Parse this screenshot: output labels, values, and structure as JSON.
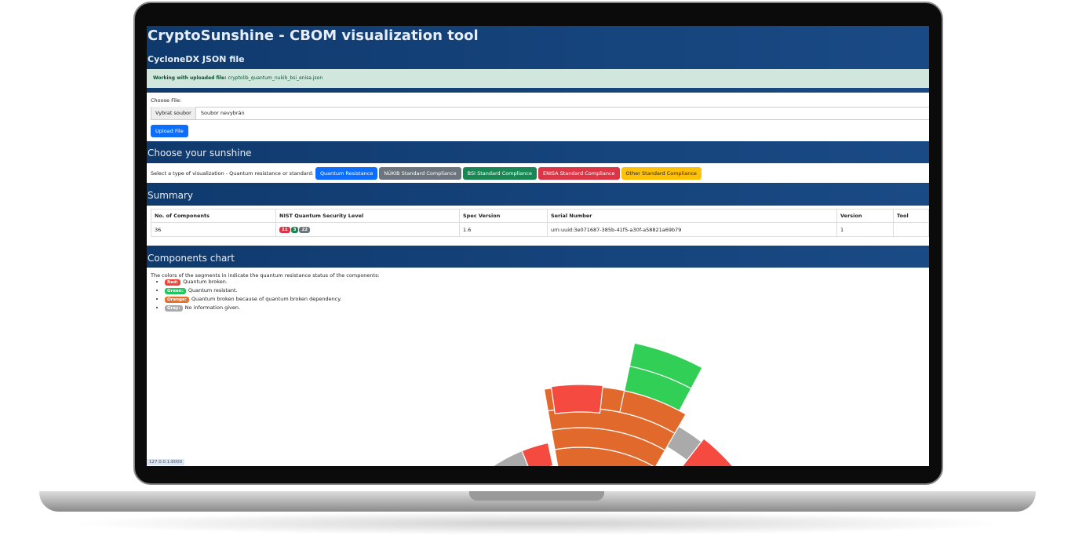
{
  "header": {
    "title": "CryptoSunshine - CBOM visualization tool"
  },
  "upload": {
    "heading": "CycloneDX JSON file",
    "alert_label": "Working with uploaded file:",
    "alert_file": "cryptolib_quantum_nukib_bsi_enisa.json",
    "choose_label": "Choose File:",
    "browse_button": "Vybrat soubor",
    "no_file": "Soubor nevybrán",
    "upload_button": "Upload File"
  },
  "visualization": {
    "heading": "Choose your sunshine",
    "prompt": "Select a type of visualization - Quantum resistance or standard:",
    "buttons": [
      "Quantum Resistance",
      "NÚKIB Standard Compliance",
      "BSI Standard Compliance",
      "ENISA Standard Compliance",
      "Other Standard Compliance"
    ]
  },
  "summary": {
    "heading": "Summary",
    "columns": [
      "No. of Components",
      "NIST Quantum Security Level",
      "Spec Version",
      "Serial Number",
      "Version",
      "Tool"
    ],
    "rows": [
      {
        "components": 36,
        "levels": [
          11,
          3,
          22
        ],
        "spec_version": 1.6,
        "serial": "urn:uuid:3e071687-385b-41f5-a30f-a58821a69b79",
        "version": 1
      }
    ]
  },
  "chart": {
    "heading": "Components chart",
    "intro": "The colors of the segments in indicate the quantum resistance status of the components:",
    "legend": [
      {
        "badge": "Red:",
        "text": "Quantum broken."
      },
      {
        "badge": "Green:",
        "text": "Quantum resistant."
      },
      {
        "badge": "Orange:",
        "text": "Quantum broken because of quantum broken dependency."
      },
      {
        "badge": "Gray:",
        "text": "No information given."
      }
    ]
  },
  "status_bar": "127.0.0.1:8000"
}
